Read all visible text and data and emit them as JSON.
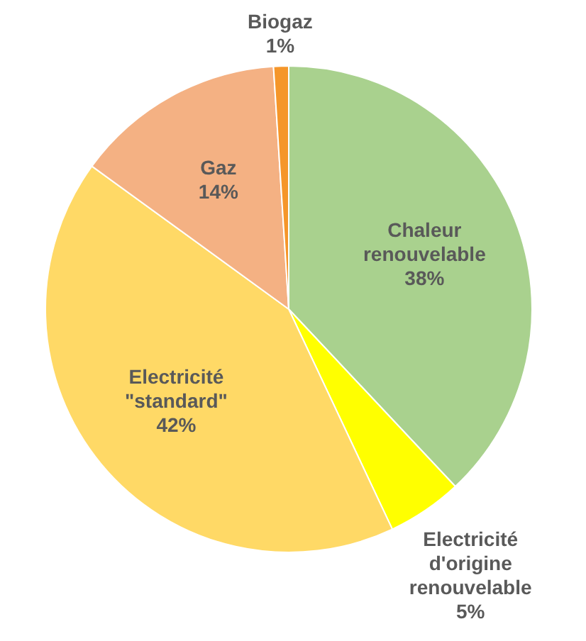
{
  "chart_data": {
    "type": "pie",
    "categories": [
      "Chaleur renouvelable",
      "Electricité d'origine renouvelable",
      "Electricité \"standard\"",
      "Gaz",
      "Biogaz"
    ],
    "values": [
      38,
      5,
      42,
      14,
      1
    ],
    "colors": [
      "#a9d18e",
      "#ffff00",
      "#ffd966",
      "#f4b183",
      "#f5962a"
    ],
    "value_labels": [
      "38%",
      "5%",
      "42%",
      "14%",
      "1%"
    ],
    "legend": false
  }
}
